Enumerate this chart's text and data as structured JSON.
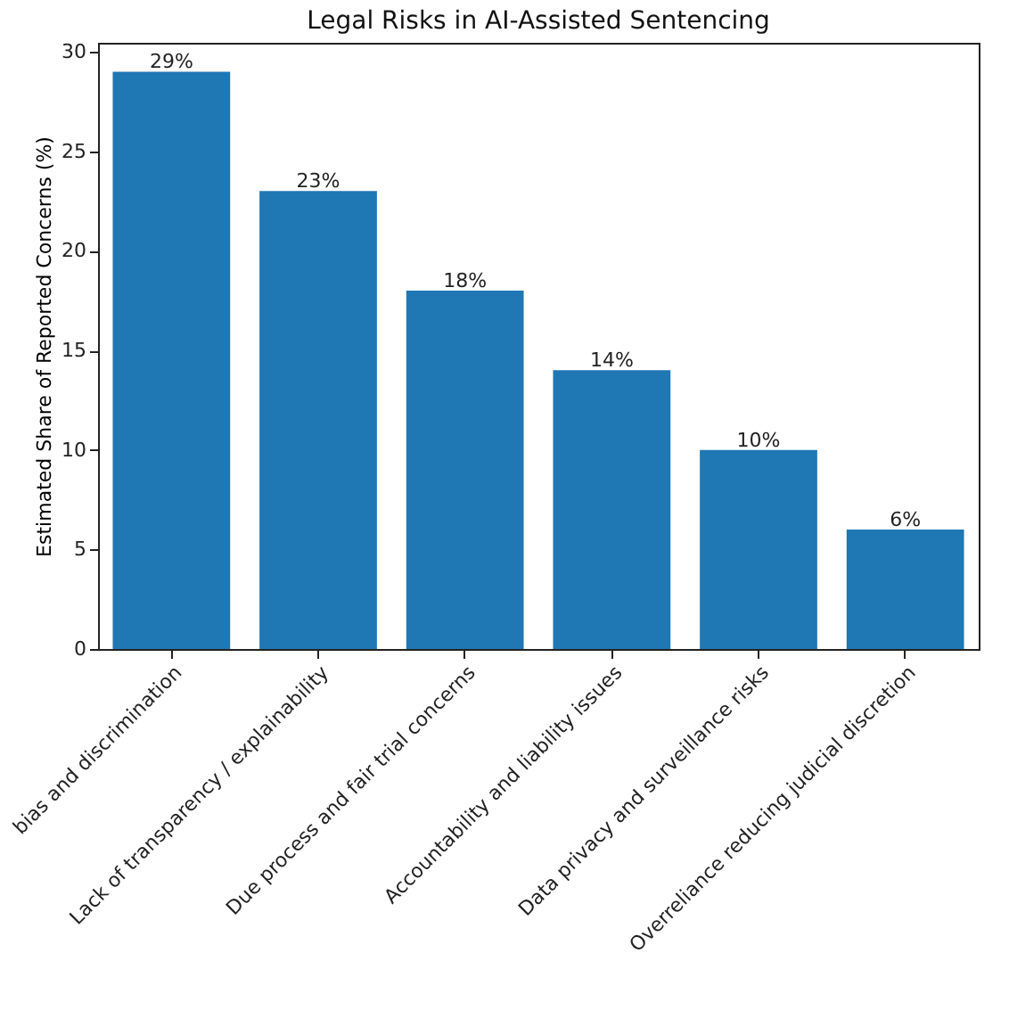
{
  "chart_data": {
    "type": "bar",
    "title": "Legal Risks in AI-Assisted Sentencing",
    "ylabel": "Estimated Share of Reported Concerns (%)",
    "categories": [
      "bias and discrimination",
      "Lack of transparency / explainability",
      "Due process and fair trial concerns",
      "Accountability and liability issues",
      "Data privacy and surveillance risks",
      "Overreliance reducing judicial discretion"
    ],
    "values": [
      29,
      23,
      18,
      14,
      10,
      6
    ],
    "value_labels": [
      "29%",
      "23%",
      "18%",
      "14%",
      "10%",
      "6%"
    ],
    "color": "#1f77b4",
    "ylim": [
      0,
      30.45
    ],
    "yticks": [
      0,
      5,
      10,
      15,
      20,
      25,
      30
    ],
    "grid": false
  }
}
